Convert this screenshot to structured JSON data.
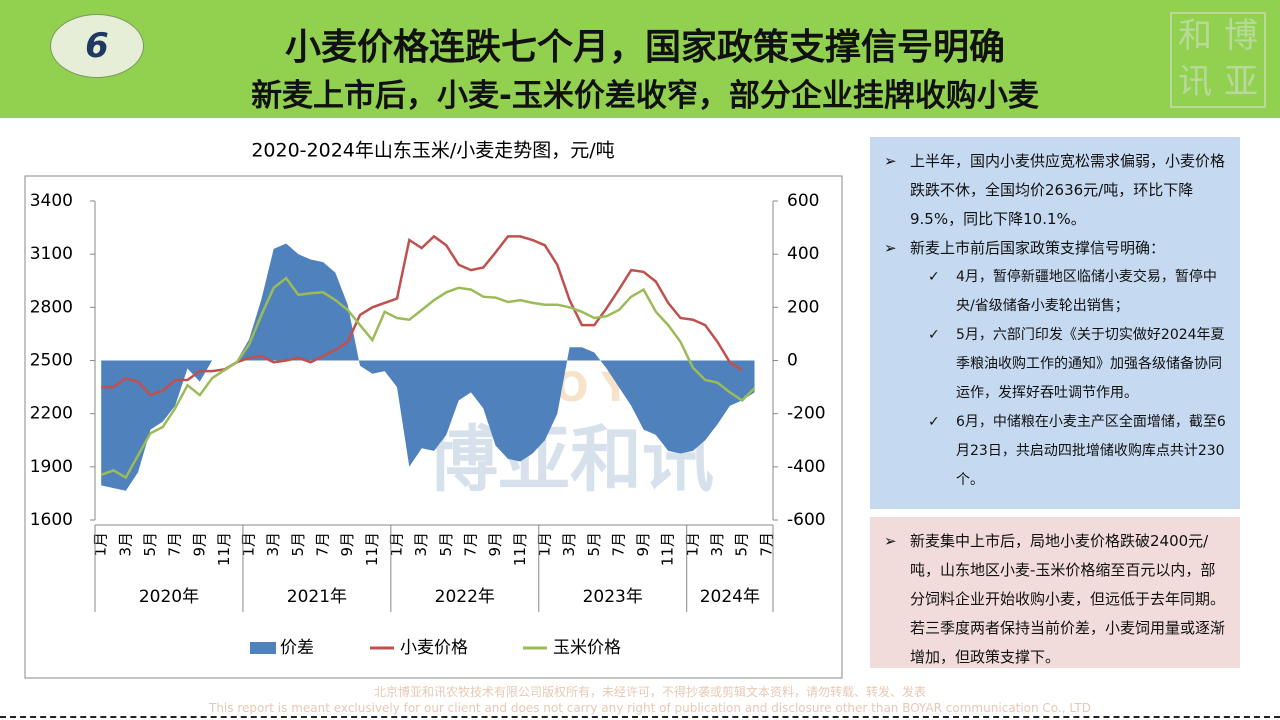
{
  "header": {
    "badge": "6",
    "title": "小麦价格连跌七个月，国家政策支撑信号明确",
    "subtitle": "新麦上市后，小麦-玉米价差收窄，部分企业挂牌收购小麦"
  },
  "logo": [
    "和",
    "博",
    "讯",
    "亚"
  ],
  "chart_data": {
    "type": "combo",
    "title": "2020-2024年山东玉米/小麦走势图，元/吨",
    "categories": [
      "1月",
      null,
      "3月",
      null,
      "5月",
      null,
      "7月",
      null,
      "9月",
      null,
      "11月",
      null,
      "1月",
      null,
      "3月",
      null,
      "5月",
      null,
      "7月",
      null,
      "9月",
      null,
      "11月",
      null,
      "1月",
      null,
      "3月",
      null,
      "5月",
      null,
      "7月",
      null,
      "9月",
      null,
      "11月",
      null,
      "1月",
      null,
      "3月",
      null,
      "5月",
      null,
      "7月",
      null,
      "9月",
      null,
      "11月",
      null,
      "1月",
      null,
      "3月",
      null,
      "5月",
      null,
      "7月"
    ],
    "year_groups": [
      "2020年",
      "2021年",
      "2022年",
      "2023年",
      "2024年"
    ],
    "ylim": [
      1600,
      3400
    ],
    "yticks": [
      1600,
      1900,
      2200,
      2500,
      2800,
      3100,
      3400
    ],
    "y2lim": [
      -600,
      600
    ],
    "y2ticks": [
      -600,
      -400,
      -200,
      0,
      200,
      400,
      600
    ],
    "series": [
      {
        "name": "价差",
        "type": "area",
        "axis": "y2",
        "color": "#4f81bd",
        "values": [
          -470,
          -480,
          -490,
          -420,
          -260,
          -230,
          -170,
          -30,
          -80,
          0,
          0,
          0,
          80,
          230,
          420,
          440,
          400,
          380,
          370,
          330,
          210,
          -20,
          -50,
          -40,
          -100,
          -400,
          -330,
          -340,
          -280,
          -150,
          -120,
          -180,
          -320,
          -370,
          -380,
          -350,
          -300,
          -200,
          50,
          50,
          30,
          -30,
          -100,
          -170,
          -260,
          -280,
          -340,
          -350,
          -340,
          -300,
          -240,
          -170,
          -150,
          -120,
          null
        ]
      },
      {
        "name": "小麦价格",
        "type": "line",
        "color": "#c0504d",
        "values": [
          2350,
          2350,
          2400,
          2380,
          2305,
          2330,
          2390,
          2390,
          2440,
          2440,
          2450,
          2490,
          2515,
          2525,
          2490,
          2500,
          2515,
          2490,
          2525,
          2560,
          2605,
          2757,
          2800,
          2825,
          2850,
          3180,
          3135,
          3200,
          3150,
          3040,
          3010,
          3025,
          3110,
          3200,
          3200,
          3180,
          3150,
          3040,
          2840,
          2700,
          2700,
          2795,
          2900,
          3010,
          3000,
          2945,
          2825,
          2740,
          2730,
          2700,
          2605,
          2490,
          2445,
          null,
          null
        ]
      },
      {
        "name": "玉米价格",
        "type": "line",
        "color": "#9bbb59",
        "values": [
          1855,
          1880,
          1840,
          1965,
          2090,
          2125,
          2230,
          2360,
          2305,
          2400,
          2445,
          2490,
          2590,
          2757,
          2910,
          2965,
          2870,
          2880,
          2885,
          2840,
          2785,
          2700,
          2615,
          2775,
          2740,
          2730,
          2785,
          2840,
          2885,
          2910,
          2900,
          2860,
          2855,
          2830,
          2840,
          2825,
          2815,
          2815,
          2800,
          2775,
          2740,
          2750,
          2785,
          2860,
          2900,
          2775,
          2700,
          2605,
          2460,
          2390,
          2375,
          2320,
          2275,
          2345,
          null
        ]
      }
    ],
    "watermark": [
      "博亚和讯",
      "BOYAR"
    ]
  },
  "notes": {
    "items": [
      {
        "text": "上半年，国内小麦供应宽松需求偏弱，小麦价格跌跌不休，全国均价2636元/吨，环比下降9.5%，同比下降10.1%。",
        "sub": []
      },
      {
        "text": "新麦上市前后国家政策支撑信号明确：",
        "sub": [
          "4月，暂停新疆地区临储小麦交易，暂停中央/省级储备小麦轮出销售；",
          "5月，六部门印发《关于切实做好2024年夏季粮油收购工作的通知》加强各级储备协同运作，发挥好吞吐调节作用。",
          "6月，中储粮在小麦主产区全面增储，截至6月23日，共启动四批增储收购库点共计230个。"
        ]
      }
    ],
    "bullet": "➢",
    "check": "✓"
  },
  "outlook": "新麦集中上市后，局地小麦价格跌破2400元/吨，山东地区小麦-玉米价格缩至百元以内，部分饲料企业开始收购小麦，但远低于去年同期。若三季度两者保持当前价差，小麦饲用量或逐渐增加，但政策支撑下。",
  "footer": [
    "北京博亚和讯农牧技术有限公司版权所有，未经许可，不得抄袭或剪辑文本资料，请勿转载、转发、发表",
    "This report is meant exclusively for our client and does not carry any right of publication and disclosure other than BOYAR communication Co., LTD"
  ]
}
